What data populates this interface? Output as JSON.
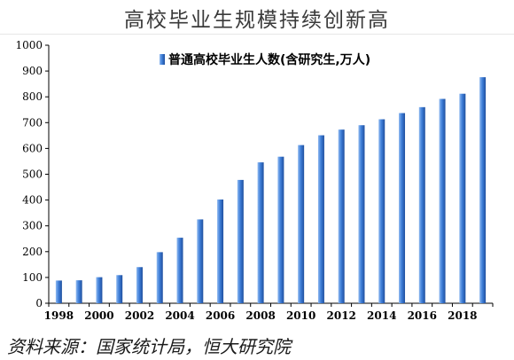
{
  "header": {
    "title": "高校毕业生规模持续创新高"
  },
  "footer": {
    "source": "资料来源：国家统计局，恒大研究院"
  },
  "chart_data": {
    "type": "bar",
    "title": "高校毕业生规模持续创新高",
    "xlabel": "",
    "ylabel": "",
    "legend_position": "top-center",
    "grid": false,
    "ylim": [
      0,
      1000
    ],
    "y_ticks": [
      0,
      100,
      200,
      300,
      400,
      500,
      600,
      700,
      800,
      900,
      1000
    ],
    "categories": [
      "1998",
      "1999",
      "2000",
      "2001",
      "2002",
      "2003",
      "2004",
      "2005",
      "2006",
      "2007",
      "2008",
      "2009",
      "2010",
      "2011",
      "2012",
      "2013",
      "2014",
      "2015",
      "2016",
      "2017",
      "2018",
      "2019"
    ],
    "x_tick_labels": [
      "1998",
      "2000",
      "2002",
      "2004",
      "2006",
      "2008",
      "2010",
      "2012",
      "2014",
      "2016",
      "2018"
    ],
    "series": [
      {
        "name": "普通高校毕业生人数(含研究生,万人)",
        "color": "#3f7fd9",
        "values": [
          88,
          89,
          101,
          109,
          140,
          198,
          254,
          325,
          402,
          478,
          546,
          568,
          613,
          651,
          673,
          690,
          713,
          737,
          760,
          792,
          812,
          876
        ]
      }
    ]
  }
}
